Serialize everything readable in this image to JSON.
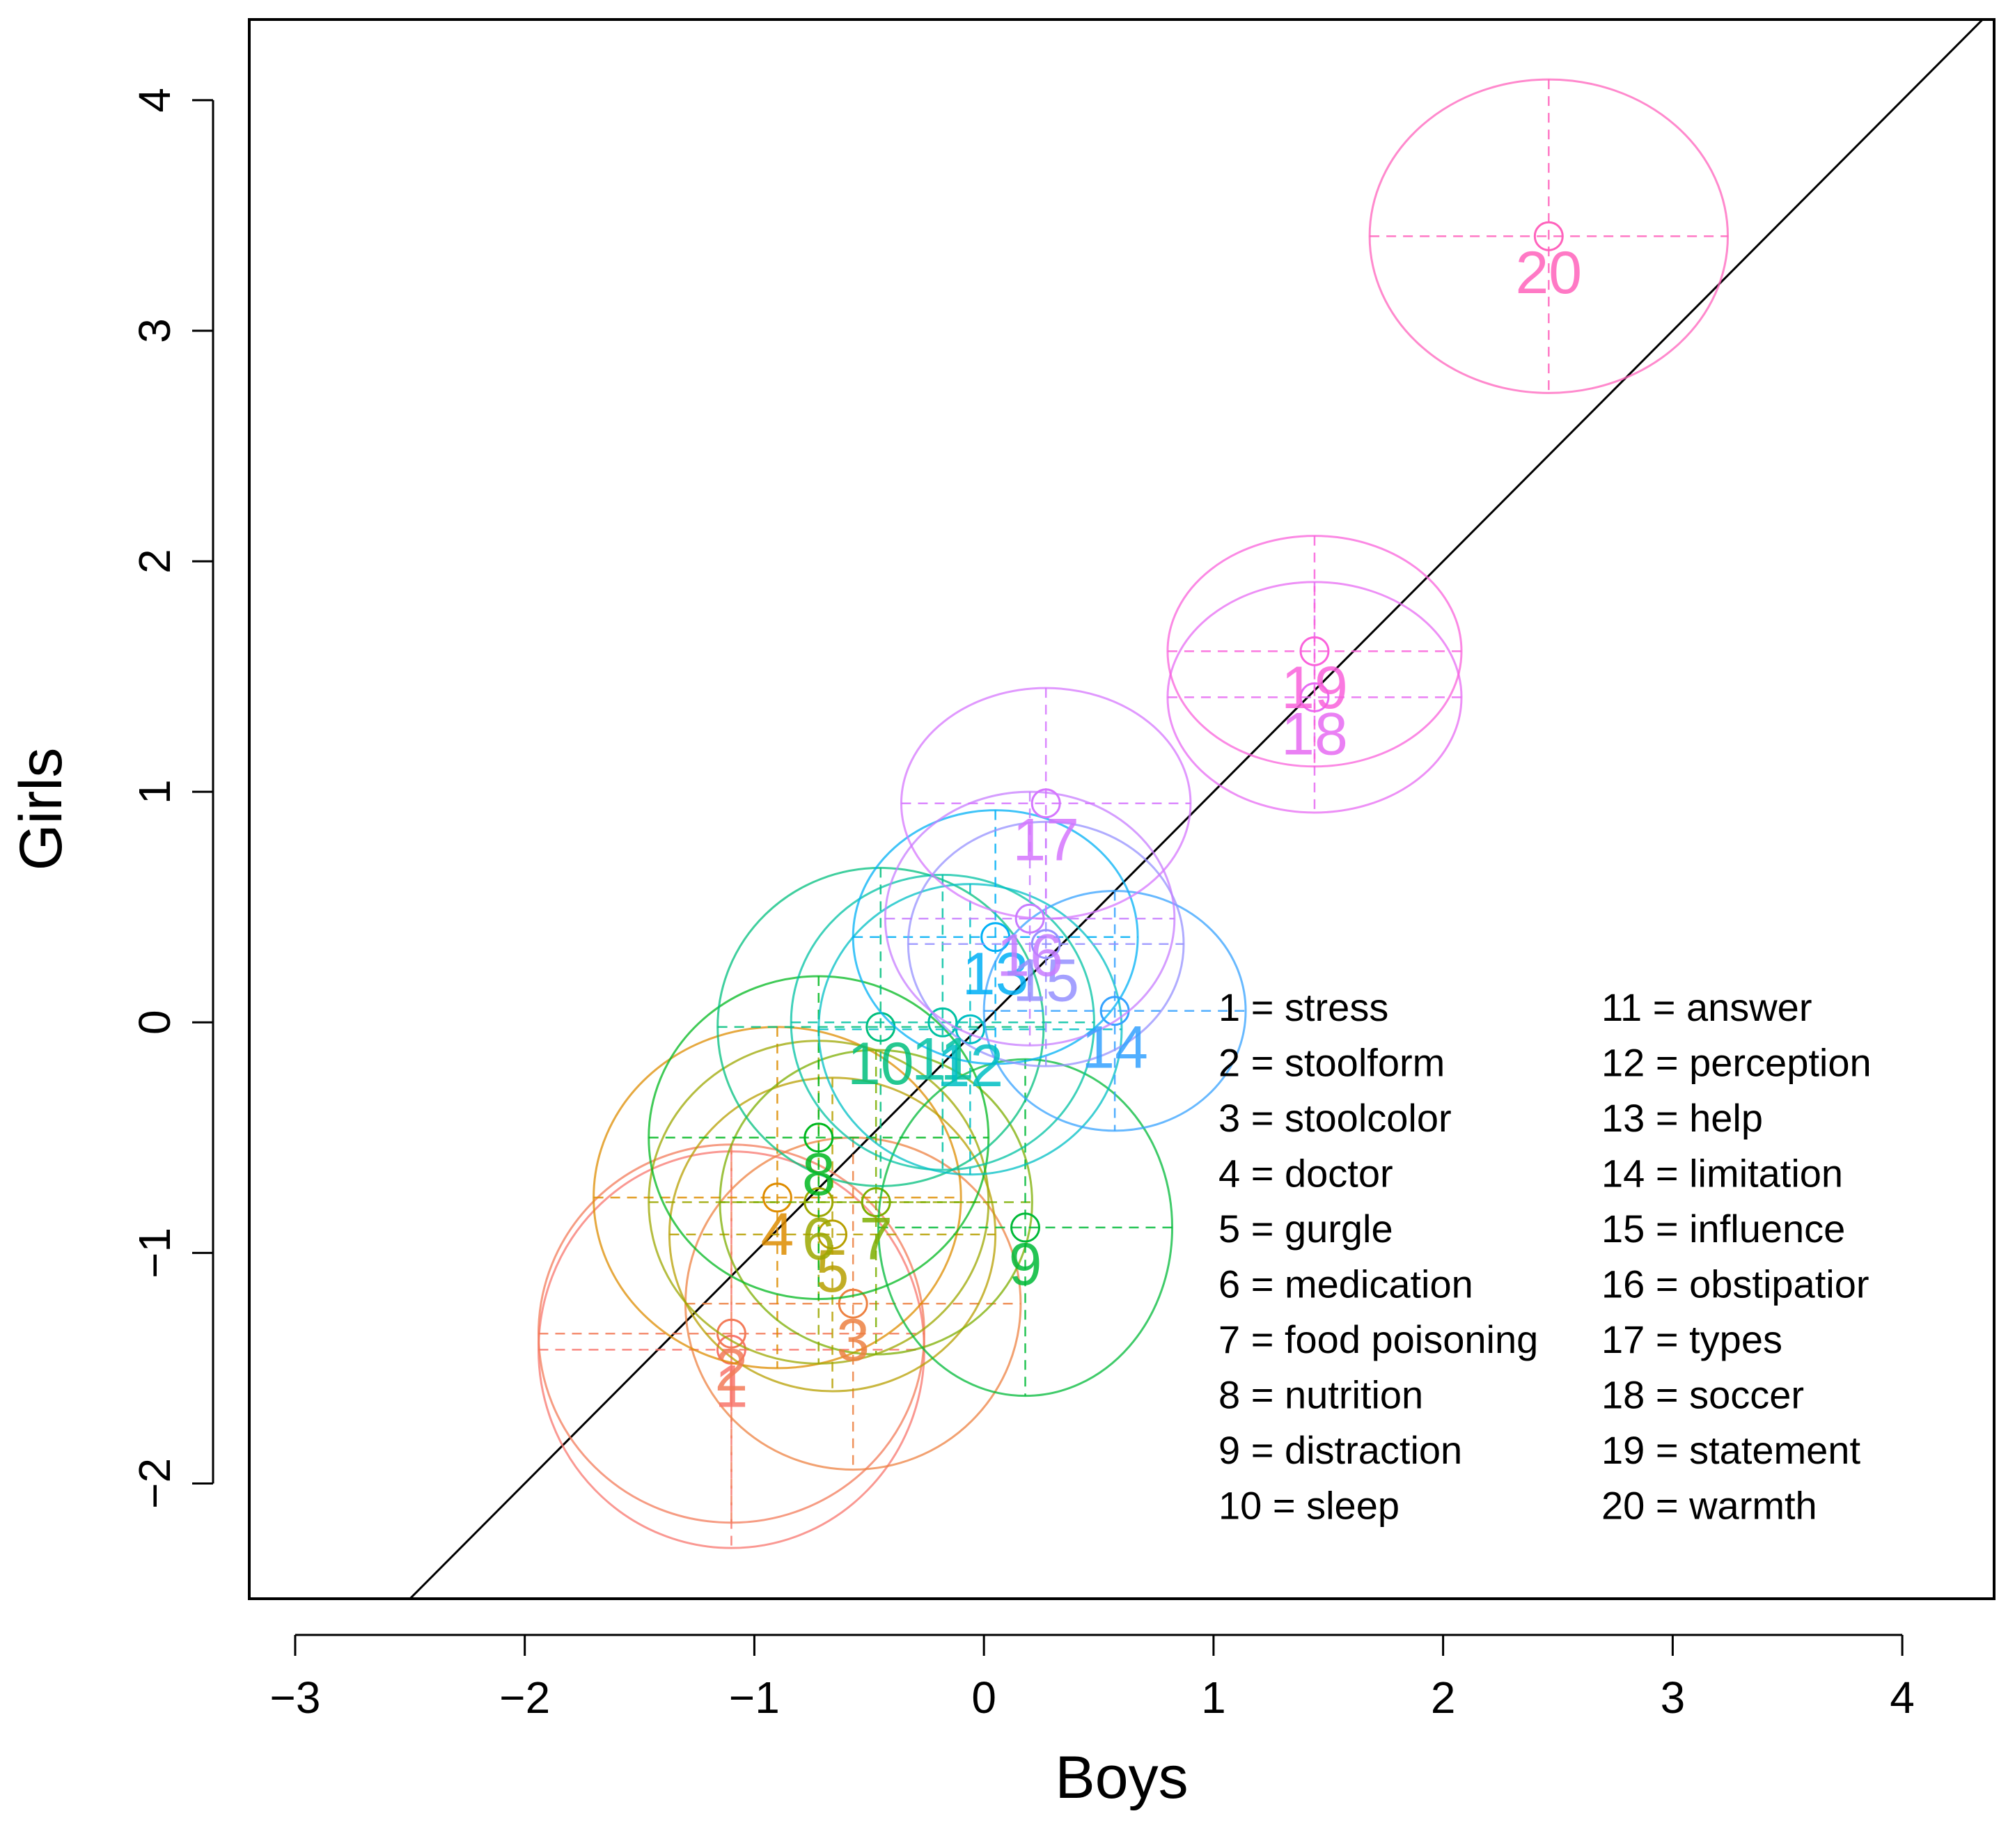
{
  "chart_data": {
    "type": "scatter",
    "title": "",
    "xlabel": "Boys",
    "ylabel": "Girls",
    "xlim": [
      -3.2,
      4.4
    ],
    "ylim": [
      -2.5,
      4.35
    ],
    "xticks": [
      -3,
      -2,
      -1,
      0,
      1,
      2,
      3,
      4
    ],
    "yticks": [
      -2,
      -1,
      0,
      1,
      2,
      3,
      4
    ],
    "reference_line": {
      "slope": 1,
      "intercept": 0,
      "color": "#000000"
    },
    "legend_position": "bottom-right",
    "items": [
      {
        "id": 1,
        "name": "stress",
        "x": -1.1,
        "y": -1.42,
        "sx": 0.84,
        "sy": 0.86,
        "color": "#F8766D"
      },
      {
        "id": 2,
        "name": "stoolform",
        "x": -1.1,
        "y": -1.35,
        "sx": 0.84,
        "sy": 0.82,
        "color": "#F37B59"
      },
      {
        "id": 3,
        "name": "stoolcolor",
        "x": -0.57,
        "y": -1.22,
        "sx": 0.73,
        "sy": 0.72,
        "color": "#ED8141"
      },
      {
        "id": 4,
        "name": "doctor",
        "x": -0.9,
        "y": -0.76,
        "sx": 0.8,
        "sy": 0.74,
        "color": "#DE8C00"
      },
      {
        "id": 5,
        "name": "gurgle",
        "x": -0.66,
        "y": -0.92,
        "sx": 0.71,
        "sy": 0.68,
        "color": "#B79F00"
      },
      {
        "id": 6,
        "name": "medication",
        "x": -0.72,
        "y": -0.78,
        "sx": 0.74,
        "sy": 0.7,
        "color": "#9CA700"
      },
      {
        "id": 7,
        "name": "food poisoning",
        "x": -0.47,
        "y": -0.78,
        "sx": 0.68,
        "sy": 0.66,
        "color": "#7CAE00"
      },
      {
        "id": 8,
        "name": "nutrition",
        "x": -0.72,
        "y": -0.5,
        "sx": 0.74,
        "sy": 0.7,
        "color": "#00B81F"
      },
      {
        "id": 9,
        "name": "distraction",
        "x": 0.18,
        "y": -0.89,
        "sx": 0.64,
        "sy": 0.73,
        "color": "#00BA38"
      },
      {
        "id": 10,
        "name": "sleep",
        "x": -0.45,
        "y": -0.02,
        "sx": 0.71,
        "sy": 0.69,
        "color": "#00BF7D"
      },
      {
        "id": 11,
        "name": "answer",
        "x": -0.18,
        "y": 0.0,
        "sx": 0.66,
        "sy": 0.64,
        "color": "#00C1A3"
      },
      {
        "id": 12,
        "name": "perception",
        "x": -0.06,
        "y": -0.03,
        "sx": 0.66,
        "sy": 0.63,
        "color": "#00BFC4"
      },
      {
        "id": 13,
        "name": "help",
        "x": 0.05,
        "y": 0.37,
        "sx": 0.62,
        "sy": 0.55,
        "color": "#00B0F6"
      },
      {
        "id": 14,
        "name": "limitation",
        "x": 0.57,
        "y": 0.05,
        "sx": 0.57,
        "sy": 0.52,
        "color": "#35A2FF"
      },
      {
        "id": 15,
        "name": "influence",
        "x": 0.27,
        "y": 0.34,
        "sx": 0.6,
        "sy": 0.53,
        "color": "#9590FF"
      },
      {
        "id": 16,
        "name": "obstipatior",
        "x": 0.2,
        "y": 0.45,
        "sx": 0.63,
        "sy": 0.55,
        "color": "#C77CFF"
      },
      {
        "id": 17,
        "name": "types",
        "x": 0.27,
        "y": 0.95,
        "sx": 0.63,
        "sy": 0.5,
        "color": "#D575FE"
      },
      {
        "id": 18,
        "name": "soccer",
        "x": 1.44,
        "y": 1.41,
        "sx": 0.64,
        "sy": 0.5,
        "color": "#E76BF3"
      },
      {
        "id": 19,
        "name": "statement",
        "x": 1.44,
        "y": 1.61,
        "sx": 0.64,
        "sy": 0.5,
        "color": "#FA62DB"
      },
      {
        "id": 20,
        "name": "warmth",
        "x": 2.46,
        "y": 3.41,
        "sx": 0.78,
        "sy": 0.68,
        "color": "#FF62BC"
      }
    ]
  },
  "legend": [
    "1 = stress",
    "2 = stoolform",
    "3 = stoolcolor",
    "4 = doctor",
    "5 = gurgle",
    "6 = medication",
    "7 = food poisoning",
    "8 = nutrition",
    "9 = distraction",
    "10 = sleep",
    "11 = answer",
    "12 = perception",
    "13 = help",
    "14 = limitation",
    "15 = influence",
    "16 = obstipatior",
    "17 = types",
    "18 = soccer",
    "19 = statement",
    "20 = warmth"
  ]
}
